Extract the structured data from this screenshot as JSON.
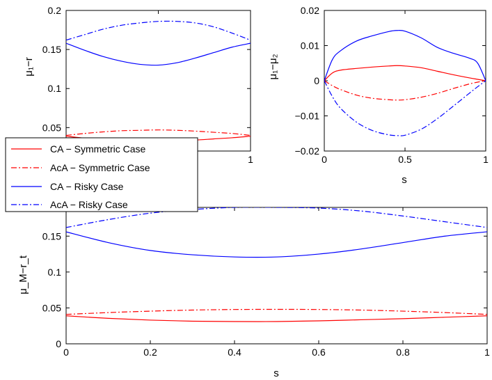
{
  "legend": {
    "entries": [
      {
        "label": "CA − Symmetric Case",
        "color": "#ff0000",
        "dash": "solid"
      },
      {
        "label": "AcA − Symmetric Case",
        "color": "#ff0000",
        "dash": "dashdot"
      },
      {
        "label": "CA − Risky Case",
        "color": "#0000ff",
        "dash": "solid"
      },
      {
        "label": "AcA − Risky Case",
        "color": "#0000ff",
        "dash": "dashdot"
      }
    ]
  },
  "chart_data": [
    {
      "id": "top-left",
      "type": "line",
      "xlabel": "",
      "ylabel": "μ₁−r",
      "xlim": [
        0,
        1
      ],
      "ylim": [
        0.02,
        0.2
      ],
      "xticks": [
        0,
        0.5,
        1
      ],
      "xtick_labels": [
        "0",
        "0.5",
        "1"
      ],
      "yticks": [
        0.05,
        0.1,
        0.15,
        0.2
      ],
      "ytick_labels": [
        "0.05",
        "0.1",
        "0.15",
        "0.2"
      ],
      "x": [
        0,
        0.1,
        0.2,
        0.3,
        0.4,
        0.5,
        0.6,
        0.7,
        0.8,
        0.9,
        1.0
      ],
      "series": [
        {
          "name": "CA − Symmetric Case",
          "color": "#ff0000",
          "dash": "solid",
          "values": [
            0.039,
            0.0365,
            0.0345,
            0.0335,
            0.033,
            0.033,
            0.0335,
            0.034,
            0.0355,
            0.037,
            0.039
          ]
        },
        {
          "name": "AcA − Symmetric Case",
          "color": "#ff0000",
          "dash": "dashdot",
          "values": [
            0.04,
            0.0425,
            0.0445,
            0.046,
            0.0465,
            0.047,
            0.0465,
            0.0455,
            0.044,
            0.0425,
            0.04
          ]
        },
        {
          "name": "CA − Risky Case",
          "color": "#0000ff",
          "dash": "solid",
          "values": [
            0.158,
            0.149,
            0.141,
            0.135,
            0.131,
            0.13,
            0.133,
            0.139,
            0.146,
            0.153,
            0.158
          ]
        },
        {
          "name": "AcA − Risky Case",
          "color": "#0000ff",
          "dash": "dashdot",
          "values": [
            0.162,
            0.169,
            0.176,
            0.181,
            0.184,
            0.186,
            0.186,
            0.184,
            0.179,
            0.171,
            0.162
          ]
        }
      ]
    },
    {
      "id": "top-right",
      "type": "line",
      "xlabel": "s",
      "ylabel": "μ₁−μ₂",
      "xlim": [
        0,
        1
      ],
      "ylim": [
        -0.02,
        0.02
      ],
      "xticks": [
        0,
        0.5,
        1
      ],
      "xtick_labels": [
        "0",
        "0.5",
        "1"
      ],
      "yticks": [
        -0.02,
        -0.01,
        0,
        0.01,
        0.02
      ],
      "ytick_labels": [
        "−0.02",
        "−0.01",
        "0",
        "0.01",
        "0.02"
      ],
      "x": [
        0,
        0.05,
        0.1,
        0.2,
        0.3,
        0.4,
        0.45,
        0.5,
        0.6,
        0.7,
        0.8,
        0.9,
        0.95,
        1.0
      ],
      "series": [
        {
          "name": "CA − Symmetric Case",
          "color": "#ff0000",
          "dash": "solid",
          "values": [
            0,
            0.0022,
            0.003,
            0.0035,
            0.0039,
            0.0042,
            0.0043,
            0.0042,
            0.0037,
            0.0027,
            0.0017,
            0.0008,
            0.0004,
            0
          ]
        },
        {
          "name": "AcA − Symmetric Case",
          "color": "#ff0000",
          "dash": "dashdot",
          "values": [
            0,
            -0.0014,
            -0.0025,
            -0.0041,
            -0.005,
            -0.0054,
            -0.0055,
            -0.0054,
            -0.0047,
            -0.0036,
            -0.0022,
            -0.0009,
            -0.0004,
            0
          ]
        },
        {
          "name": "CA − Risky Case",
          "color": "#0000ff",
          "dash": "solid",
          "values": [
            0,
            0.006,
            0.0085,
            0.0113,
            0.0128,
            0.014,
            0.0143,
            0.0141,
            0.0122,
            0.0095,
            0.0078,
            0.0064,
            0.005,
            0
          ]
        },
        {
          "name": "AcA − Risky Case",
          "color": "#0000ff",
          "dash": "dashdot",
          "values": [
            0,
            -0.0045,
            -0.0078,
            -0.0118,
            -0.0142,
            -0.0154,
            -0.0156,
            -0.0155,
            -0.0138,
            -0.0108,
            -0.0072,
            -0.0035,
            -0.0017,
            0
          ]
        }
      ]
    },
    {
      "id": "bottom",
      "type": "line",
      "xlabel": "s",
      "ylabel": "μ_M−r_t",
      "xlim": [
        0,
        1
      ],
      "ylim": [
        0,
        0.19
      ],
      "xticks": [
        0,
        0.2,
        0.4,
        0.6,
        0.8,
        1
      ],
      "xtick_labels": [
        "0",
        "0.2",
        "0.4",
        "0.6",
        "0.8",
        "1"
      ],
      "yticks": [
        0,
        0.05,
        0.1,
        0.15
      ],
      "ytick_labels": [
        "0",
        "0.05",
        "0.1",
        "0.15"
      ],
      "x": [
        0,
        0.1,
        0.2,
        0.3,
        0.4,
        0.5,
        0.6,
        0.7,
        0.8,
        0.9,
        1.0
      ],
      "series": [
        {
          "name": "CA − Symmetric Case",
          "color": "#ff0000",
          "dash": "solid",
          "values": [
            0.039,
            0.0355,
            0.033,
            0.0315,
            0.031,
            0.031,
            0.032,
            0.0335,
            0.035,
            0.037,
            0.039
          ]
        },
        {
          "name": "AcA − Symmetric Case",
          "color": "#ff0000",
          "dash": "dashdot",
          "values": [
            0.041,
            0.0435,
            0.0455,
            0.047,
            0.0478,
            0.048,
            0.0478,
            0.047,
            0.0455,
            0.0435,
            0.041
          ]
        },
        {
          "name": "CA − Risky Case",
          "color": "#0000ff",
          "dash": "solid",
          "values": [
            0.156,
            0.141,
            0.13,
            0.124,
            0.121,
            0.121,
            0.125,
            0.132,
            0.141,
            0.15,
            0.156
          ]
        },
        {
          "name": "AcA − Risky Case",
          "color": "#0000ff",
          "dash": "dashdot",
          "values": [
            0.162,
            0.173,
            0.182,
            0.187,
            0.19,
            0.19,
            0.189,
            0.185,
            0.178,
            0.17,
            0.162
          ]
        }
      ]
    }
  ]
}
